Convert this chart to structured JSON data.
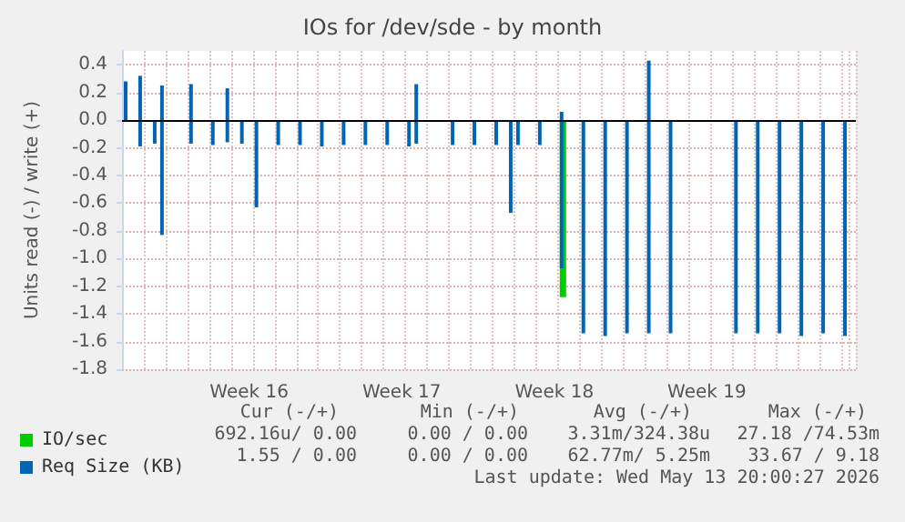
{
  "chart_data": {
    "type": "bar",
    "title": "IOs for /dev/sde - by month",
    "ylabel": "Units read (-) / write (+)",
    "categories": [
      null,
      null,
      null,
      null,
      null,
      null,
      null,
      null,
      null,
      null,
      null,
      null,
      null,
      null,
      null,
      null,
      null,
      "Week 16",
      null,
      null,
      null,
      null,
      null,
      null,
      null,
      null,
      null,
      null,
      null,
      null,
      null,
      null,
      null,
      null,
      null,
      null,
      null,
      null,
      "Week 17",
      null,
      null,
      null,
      null,
      null,
      null,
      null,
      null,
      null,
      null,
      null,
      null,
      null,
      null,
      null,
      null,
      null,
      null,
      null,
      null,
      "Week 18",
      null,
      null,
      null,
      null,
      null,
      null,
      null,
      null,
      null,
      null,
      null,
      null,
      null,
      null,
      null,
      null,
      null,
      null,
      null,
      null,
      "Week 19",
      null,
      null,
      null,
      null,
      null,
      null,
      null,
      null,
      null,
      null,
      null,
      null,
      null,
      null,
      null,
      null,
      null,
      null,
      null,
      null
    ],
    "ylim": [
      -1.8,
      0.5
    ],
    "yticks": [
      -1.8,
      -1.6,
      -1.4,
      -1.2,
      {
        "value": -1,
        "label": "-1.0"
      },
      -0.8,
      -0.6,
      -0.4,
      -0.2,
      {
        "value": 0,
        "label": "0.0"
      },
      0.2,
      0.4
    ],
    "grid": true,
    "legend": "bottom left",
    "ref_lines": [
      {
        "axis": "y",
        "value": 0,
        "color": "#000000"
      }
    ],
    "series": [
      {
        "name": "IO/sec",
        "color": "#00cc00",
        "values": [
          null,
          null,
          null,
          null,
          null,
          null,
          null,
          null,
          null,
          null,
          null,
          null,
          null,
          null,
          null,
          null,
          null,
          null,
          null,
          null,
          null,
          null,
          null,
          null,
          null,
          null,
          null,
          null,
          null,
          null,
          null,
          null,
          null,
          null,
          null,
          null,
          null,
          null,
          null,
          null,
          null,
          null,
          null,
          null,
          null,
          null,
          null,
          null,
          null,
          null,
          null,
          null,
          null,
          null,
          null,
          null,
          null,
          null,
          null,
          null,
          -1.28,
          null,
          null,
          null,
          null,
          null,
          null,
          null,
          null,
          null,
          null,
          null,
          null,
          null,
          null,
          null,
          null,
          null,
          null,
          null,
          null,
          null,
          null,
          null,
          null,
          null,
          null,
          null,
          null,
          null,
          null,
          null,
          null,
          null,
          null,
          null,
          null,
          null,
          null,
          null,
          null
        ]
      },
      {
        "name": "Req Size (KB)",
        "color": "#0066b3",
        "values": [
          null,
          null,
          -0.19,
          null,
          -0.17,
          -0.83,
          null,
          null,
          null,
          -0.17,
          null,
          null,
          -0.18,
          null,
          -0.16,
          null,
          -0.17,
          null,
          -0.63,
          null,
          null,
          -0.18,
          null,
          null,
          -0.18,
          null,
          null,
          -0.19,
          null,
          null,
          -0.18,
          null,
          null,
          -0.18,
          null,
          null,
          -0.18,
          null,
          null,
          -0.19,
          -0.17,
          null,
          null,
          null,
          null,
          -0.18,
          null,
          null,
          -0.18,
          null,
          null,
          -0.18,
          null,
          -0.67,
          -0.18,
          null,
          null,
          -0.18,
          null,
          null,
          -1.07,
          null,
          null,
          -1.54,
          null,
          null,
          -1.56,
          null,
          null,
          -1.54,
          null,
          null,
          -1.54,
          null,
          null,
          -1.54,
          null,
          null,
          null,
          null,
          null,
          null,
          null,
          null,
          -1.54,
          null,
          null,
          -1.54,
          null,
          null,
          -1.54,
          null,
          null,
          -1.56,
          null,
          null,
          -1.54,
          null,
          null,
          -1.56,
          null
        ]
      },
      {
        "color": "#0066b3",
        "values": [
          0.28,
          null,
          0.32,
          null,
          null,
          0.25,
          null,
          null,
          null,
          0.26,
          null,
          null,
          null,
          null,
          0.23,
          null,
          null,
          null,
          null,
          null,
          null,
          null,
          null,
          null,
          null,
          null,
          null,
          null,
          null,
          null,
          null,
          null,
          null,
          null,
          null,
          null,
          null,
          null,
          null,
          null,
          0.26,
          null,
          null,
          null,
          null,
          null,
          null,
          null,
          null,
          null,
          null,
          null,
          null,
          null,
          null,
          null,
          null,
          null,
          null,
          null,
          0.06,
          null,
          null,
          null,
          null,
          null,
          null,
          null,
          null,
          null,
          null,
          null,
          0.43,
          null,
          null,
          null,
          null,
          null,
          null,
          null,
          null,
          null,
          null,
          null,
          null,
          null,
          null,
          null,
          null,
          null,
          null,
          null,
          null,
          null,
          null,
          null,
          null,
          null,
          null,
          null,
          null
        ]
      }
    ],
    "annotations": [
      "Cur (-/+)",
      "Min (-/+)",
      "Avg (-/+)",
      "Max (-/+)",
      "692.16u/ 0.00",
      "0.00 / 0.00",
      "3.31m/324.38u",
      "27.18 /74.53m",
      "1.55 / 0.00",
      "0.00 / 0.00",
      "62.77m/ 5.25m",
      "33.67 / 9.18",
      "Last update: Wed May 13 20:00:27 2026"
    ]
  }
}
